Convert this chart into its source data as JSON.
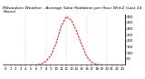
{
  "title": "Milwaukee Weather - Average Solar Radiation per Hour W/m2 (Last 24 Hours)",
  "x_hours": [
    0,
    1,
    2,
    3,
    4,
    5,
    6,
    7,
    8,
    9,
    10,
    11,
    12,
    13,
    14,
    15,
    16,
    17,
    18,
    19,
    20,
    21,
    22,
    23
  ],
  "solar": [
    0,
    0,
    0,
    0,
    0,
    0,
    0,
    5,
    30,
    80,
    180,
    320,
    400,
    370,
    280,
    170,
    70,
    20,
    3,
    0,
    0,
    0,
    0,
    0
  ],
  "line_color": "#ff0000",
  "bg_color": "#ffffff",
  "grid_color": "#999999",
  "title_fontsize": 3.2,
  "tick_fontsize": 2.8,
  "ylim": [
    0,
    420
  ],
  "xlim": [
    -0.5,
    23.5
  ],
  "yticks": [
    50,
    100,
    150,
    200,
    250,
    300,
    350,
    400
  ],
  "grid_x": [
    4,
    8,
    12,
    16,
    20
  ]
}
